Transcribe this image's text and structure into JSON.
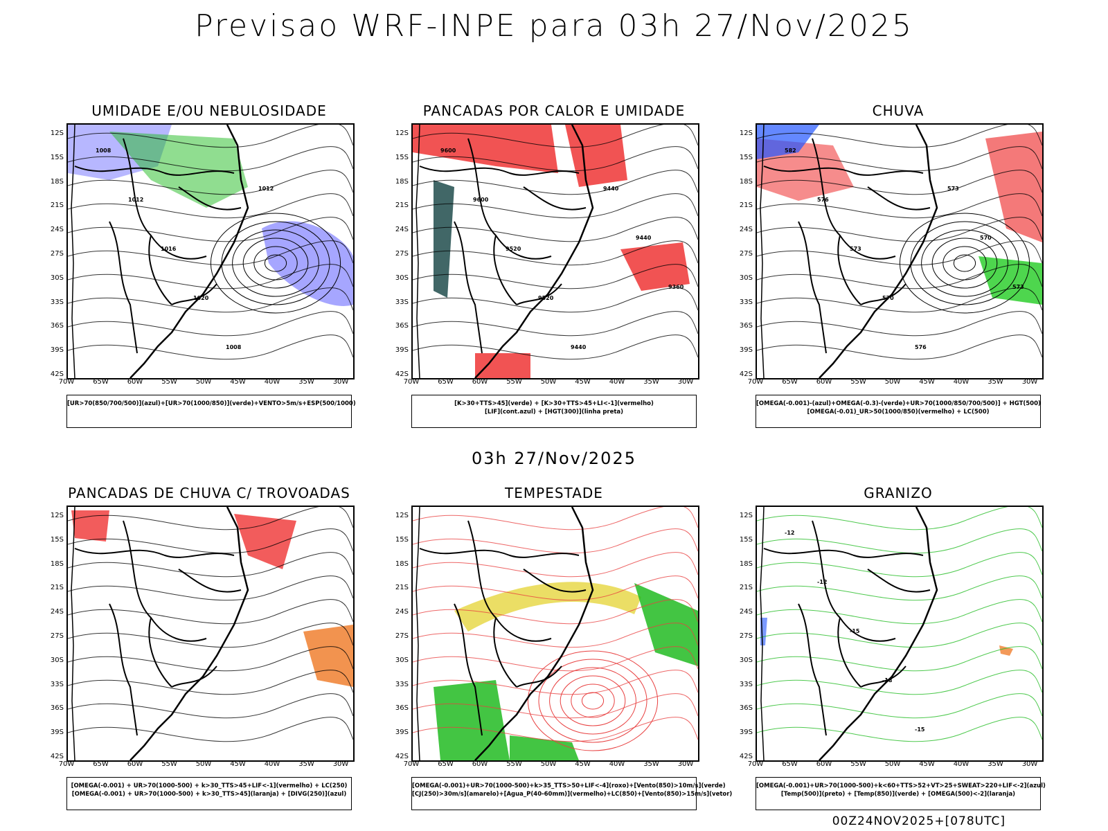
{
  "title": "Previsao WRF-INPE  para 03h 27/Nov/2025",
  "mid_date": "03h 27/Nov/2025",
  "footer_run": "00Z24NOV2025+[078UTC]",
  "lat_labels": [
    "12S",
    "15S",
    "18S",
    "21S",
    "24S",
    "27S",
    "30S",
    "33S",
    "36S",
    "39S",
    "42S"
  ],
  "lon_labels": [
    "70W",
    "65W",
    "60W",
    "55W",
    "50W",
    "45W",
    "40W",
    "35W",
    "30W"
  ],
  "panels": [
    {
      "title": "UMIDADE E/OU NEBULOSIDADE",
      "legend": [
        "[UR>70(850/700/500)](azul)+[UR>70(1000/850)](verde)+VENTO>5m/s+ESP(500/1000)"
      ],
      "contour_labels": [
        "1008",
        "1012",
        "1016",
        "1020",
        "1008",
        "1012"
      ]
    },
    {
      "title": "PANCADAS POR CALOR E UMIDADE",
      "legend": [
        "[K>30+TTS>45](verde) + [K>30+TTS>45+LI<-1](vermelho)",
        "[LIF](cont.azul) + [HGT(300)](linha preta)"
      ],
      "contour_labels": [
        "9600",
        "9600",
        "9520",
        "9520",
        "9440",
        "9440",
        "9440",
        "9360"
      ]
    },
    {
      "title": "CHUVA",
      "legend": [
        "[OMEGA(-0.001)-(azul)+OMEGA(-0.3)-(verde)+UR>70(1000/850/700/500)] + HGT(500)",
        "[OMEGA(-0.01)_UR>50(1000/850)(vermelho) + LC(500)"
      ],
      "contour_labels": [
        "582",
        "576",
        "573",
        "570",
        "576",
        "573",
        "570",
        "573"
      ]
    },
    {
      "title": "PANCADAS DE CHUVA C/ TROVOADAS",
      "legend": [
        "[OMEGA(-0.001) + UR>70(1000-500) + k>30_TTS>45+LIF<-1](vermelho) + LC(250)",
        "[OMEGA(-0.001) + UR>70(1000-500) + k>30_TTS>45](laranja) + [DIVG(250)](azul)"
      ],
      "contour_labels": []
    },
    {
      "title": "TEMPESTADE",
      "legend": [
        "[OMEGA(-0.001)+UR>70(1000-500)+k>35_TTS>50+LIF<-4](roxo)+[Vento(850)>10m/s](verde)",
        "[CJ(250)>30m/s](amarelo)+[Agua_P(40-60mm)](vermelho)+LC(850)+[Vento(850)>15m/s](vetor)"
      ],
      "contour_labels": []
    },
    {
      "title": "GRANIZO",
      "legend": [
        "[OMEGA(-0.001)+UR>70(1000-500)+k<60+TTS>52+VT>25+SWEAT>220+LIF<-2](azul)",
        "[Temp(500)](preto) + [Temp(850)](verde) + [OMEGA(500)<-2](laranja)"
      ],
      "contour_labels": [
        "-12",
        "-12",
        "-15",
        "-18",
        "-15"
      ]
    }
  ]
}
